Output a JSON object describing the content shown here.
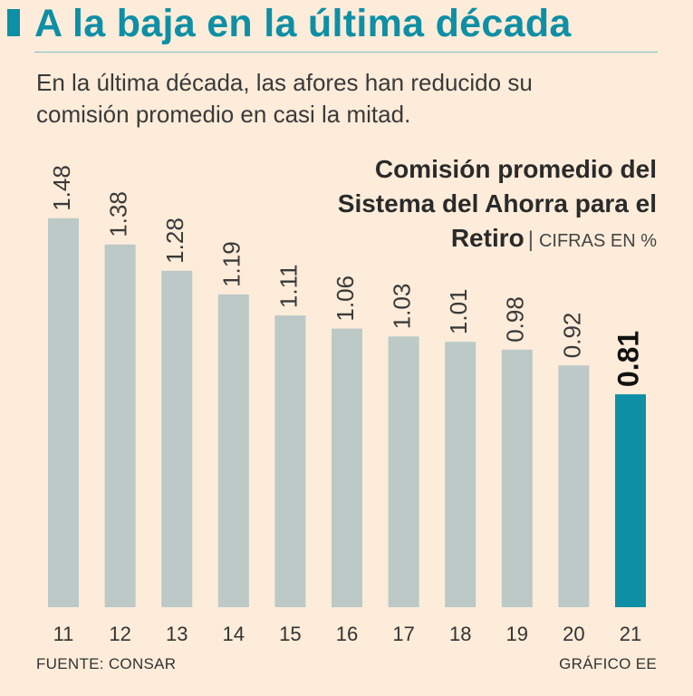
{
  "header": {
    "title": "A la baja en la última década",
    "subtitle": "En la última década, las afores han reducido su comisión promedio en casi la mitad."
  },
  "chart_title": {
    "main": "Comisión promedio del Sistema del Ahorra para el Retiro",
    "separator": "|",
    "units": "CIFRAS EN %"
  },
  "colors": {
    "accent": "#0e8fa5",
    "bar": "#bcc9c7",
    "background": "#fcecd9"
  },
  "chart_data": {
    "type": "bar",
    "title": "Comisión promedio del Sistema del Ahorra para el Retiro",
    "subtitle": "CIFRAS EN %",
    "categories": [
      "11",
      "12",
      "13",
      "14",
      "15",
      "16",
      "17",
      "18",
      "19",
      "20",
      "21"
    ],
    "values": [
      1.48,
      1.38,
      1.28,
      1.19,
      1.11,
      1.06,
      1.03,
      1.01,
      0.98,
      0.92,
      0.81
    ],
    "value_labels": [
      "1.48",
      "1.38",
      "1.28",
      "1.19",
      "1.11",
      "1.06",
      "1.03",
      "1.01",
      "0.98",
      "0.92",
      "0.81"
    ],
    "highlight_index": 10,
    "xlabel": "",
    "ylabel": "",
    "ylim": [
      0,
      1.5
    ],
    "grid": false
  },
  "footer": {
    "source": "FUENTE: CONSAR",
    "credit": "GRÁFICO EE"
  }
}
